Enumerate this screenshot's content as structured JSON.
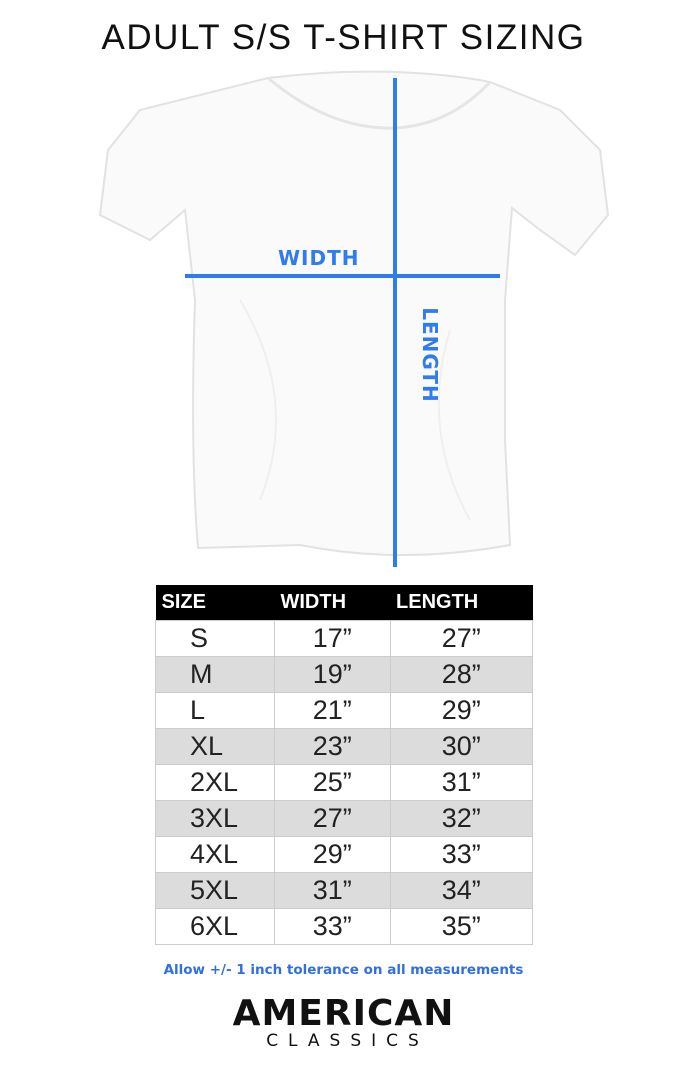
{
  "title": "ADULT S/S T-SHIRT SIZING",
  "diagram": {
    "width_label": "WIDTH",
    "length_label": "LENGTH",
    "accent_color": "#2f7bf0"
  },
  "table": {
    "headers": [
      "SIZE",
      "WIDTH",
      "LENGTH"
    ],
    "rows": [
      [
        "S",
        "17”",
        "27”"
      ],
      [
        "M",
        "19”",
        "28”"
      ],
      [
        "L",
        "21”",
        "29”"
      ],
      [
        "XL",
        "23”",
        "30”"
      ],
      [
        "2XL",
        "25”",
        "31”"
      ],
      [
        "3XL",
        "27”",
        "32”"
      ],
      [
        "4XL",
        "29”",
        "33”"
      ],
      [
        "5XL",
        "31”",
        "34”"
      ],
      [
        "6XL",
        "33”",
        "35”"
      ]
    ]
  },
  "note": "Allow +/- 1 inch tolerance on all measurements",
  "logo": {
    "line1": "AMERICAN",
    "line2": "CLASSICS"
  }
}
